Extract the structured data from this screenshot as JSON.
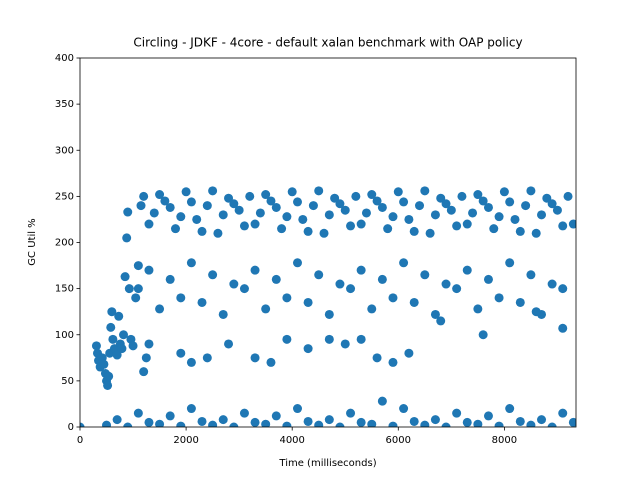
{
  "chart_data": {
    "type": "scatter",
    "title": "Circling - JDKF - 4core -  default xalan benchmark with OAP policy",
    "x_label": "Time (milliseconds)",
    "y_label": "GC Util %",
    "color": "#1f77b4",
    "xlim": [
      0,
      9350
    ],
    "xticks": [
      0,
      2000,
      4000,
      6000,
      8000
    ],
    "ylim": [
      0,
      400
    ],
    "yticks": [
      0,
      50,
      100,
      150,
      200,
      250,
      300,
      350,
      400
    ],
    "x": [
      0,
      310,
      330,
      350,
      380,
      420,
      450,
      480,
      500,
      520,
      540,
      560,
      580,
      600,
      620,
      650,
      700,
      730,
      760,
      790,
      820,
      850,
      880,
      900,
      930,
      960,
      1000,
      1050,
      1100,
      1150,
      1200,
      1250,
      1300,
      1200,
      1400,
      1600,
      1800,
      2000,
      2200,
      2400,
      2600,
      2800,
      3000,
      3200,
      3400,
      3600,
      3800,
      4000,
      4200,
      4400,
      4600,
      4800,
      5000,
      5200,
      5400,
      5600,
      5800,
      6000,
      6200,
      6400,
      6600,
      6800,
      7000,
      7200,
      7400,
      7600,
      7800,
      8000,
      8200,
      8400,
      8600,
      8800,
      9000,
      9200,
      1300,
      1500,
      1700,
      1900,
      2100,
      2300,
      2500,
      2700,
      2900,
      3100,
      3300,
      3500,
      3700,
      3900,
      4100,
      4300,
      4500,
      4700,
      4900,
      5100,
      5300,
      5500,
      5700,
      5900,
      6100,
      6300,
      6500,
      6700,
      6900,
      7100,
      7300,
      7500,
      7700,
      7900,
      8100,
      8300,
      8500,
      8700,
      8900,
      9100,
      9300,
      1100,
      1300,
      1500,
      1700,
      1900,
      2100,
      2300,
      2500,
      2700,
      2900,
      3100,
      3300,
      3500,
      3700,
      3900,
      4100,
      4300,
      4500,
      4700,
      4900,
      5100,
      5300,
      5500,
      5700,
      5900,
      6100,
      6300,
      6500,
      6700,
      6900,
      7100,
      7300,
      7500,
      7700,
      7900,
      8100,
      8300,
      8500,
      8700,
      8900,
      9100,
      1900,
      2100,
      2400,
      2800,
      3300,
      3600,
      3900,
      4300,
      4700,
      5000,
      5300,
      5600,
      5900,
      6200,
      6800,
      7600,
      8600,
      9100,
      500,
      700,
      900,
      1100,
      1300,
      1500,
      1700,
      1900,
      2100,
      2300,
      2500,
      2700,
      2900,
      3100,
      3300,
      3500,
      3700,
      3900,
      4100,
      4300,
      4500,
      4700,
      4900,
      5100,
      5300,
      5500,
      5700,
      5900,
      6100,
      6300,
      6500,
      6700,
      6900,
      7100,
      7300,
      7500,
      7700,
      7900,
      8100,
      8300,
      8500,
      8700,
      8900,
      9100,
      9300
    ],
    "values": [
      0,
      88,
      80,
      72,
      65,
      75,
      68,
      58,
      50,
      45,
      55,
      80,
      108,
      125,
      95,
      85,
      78,
      120,
      90,
      85,
      100,
      163,
      205,
      233,
      150,
      95,
      88,
      140,
      175,
      240,
      60,
      75,
      90,
      250,
      232,
      245,
      215,
      255,
      225,
      240,
      210,
      248,
      235,
      250,
      232,
      245,
      215,
      255,
      225,
      240,
      210,
      248,
      235,
      250,
      232,
      245,
      215,
      255,
      225,
      240,
      210,
      248,
      235,
      250,
      232,
      245,
      215,
      255,
      225,
      240,
      210,
      248,
      235,
      250,
      220,
      252,
      238,
      228,
      244,
      212,
      256,
      230,
      242,
      218,
      220,
      252,
      238,
      228,
      244,
      212,
      256,
      230,
      242,
      218,
      220,
      252,
      238,
      228,
      244,
      212,
      256,
      230,
      242,
      218,
      220,
      252,
      238,
      228,
      244,
      212,
      256,
      230,
      242,
      218,
      220,
      150,
      170,
      128,
      160,
      140,
      178,
      135,
      165,
      122,
      155,
      150,
      170,
      128,
      160,
      140,
      178,
      135,
      165,
      122,
      155,
      150,
      170,
      128,
      160,
      140,
      178,
      135,
      165,
      122,
      155,
      150,
      170,
      128,
      160,
      140,
      178,
      135,
      165,
      122,
      155,
      150,
      80,
      70,
      75,
      90,
      75,
      70,
      95,
      85,
      95,
      90,
      95,
      75,
      70,
      80,
      115,
      100,
      125,
      107,
      2,
      8,
      0,
      15,
      5,
      3,
      12,
      1,
      20,
      6,
      2,
      8,
      0,
      15,
      5,
      3,
      12,
      1,
      20,
      6,
      2,
      8,
      0,
      15,
      5,
      3,
      28,
      1,
      20,
      6,
      2,
      8,
      0,
      15,
      5,
      3,
      12,
      1,
      20,
      6,
      2,
      8,
      0,
      15,
      5
    ]
  }
}
